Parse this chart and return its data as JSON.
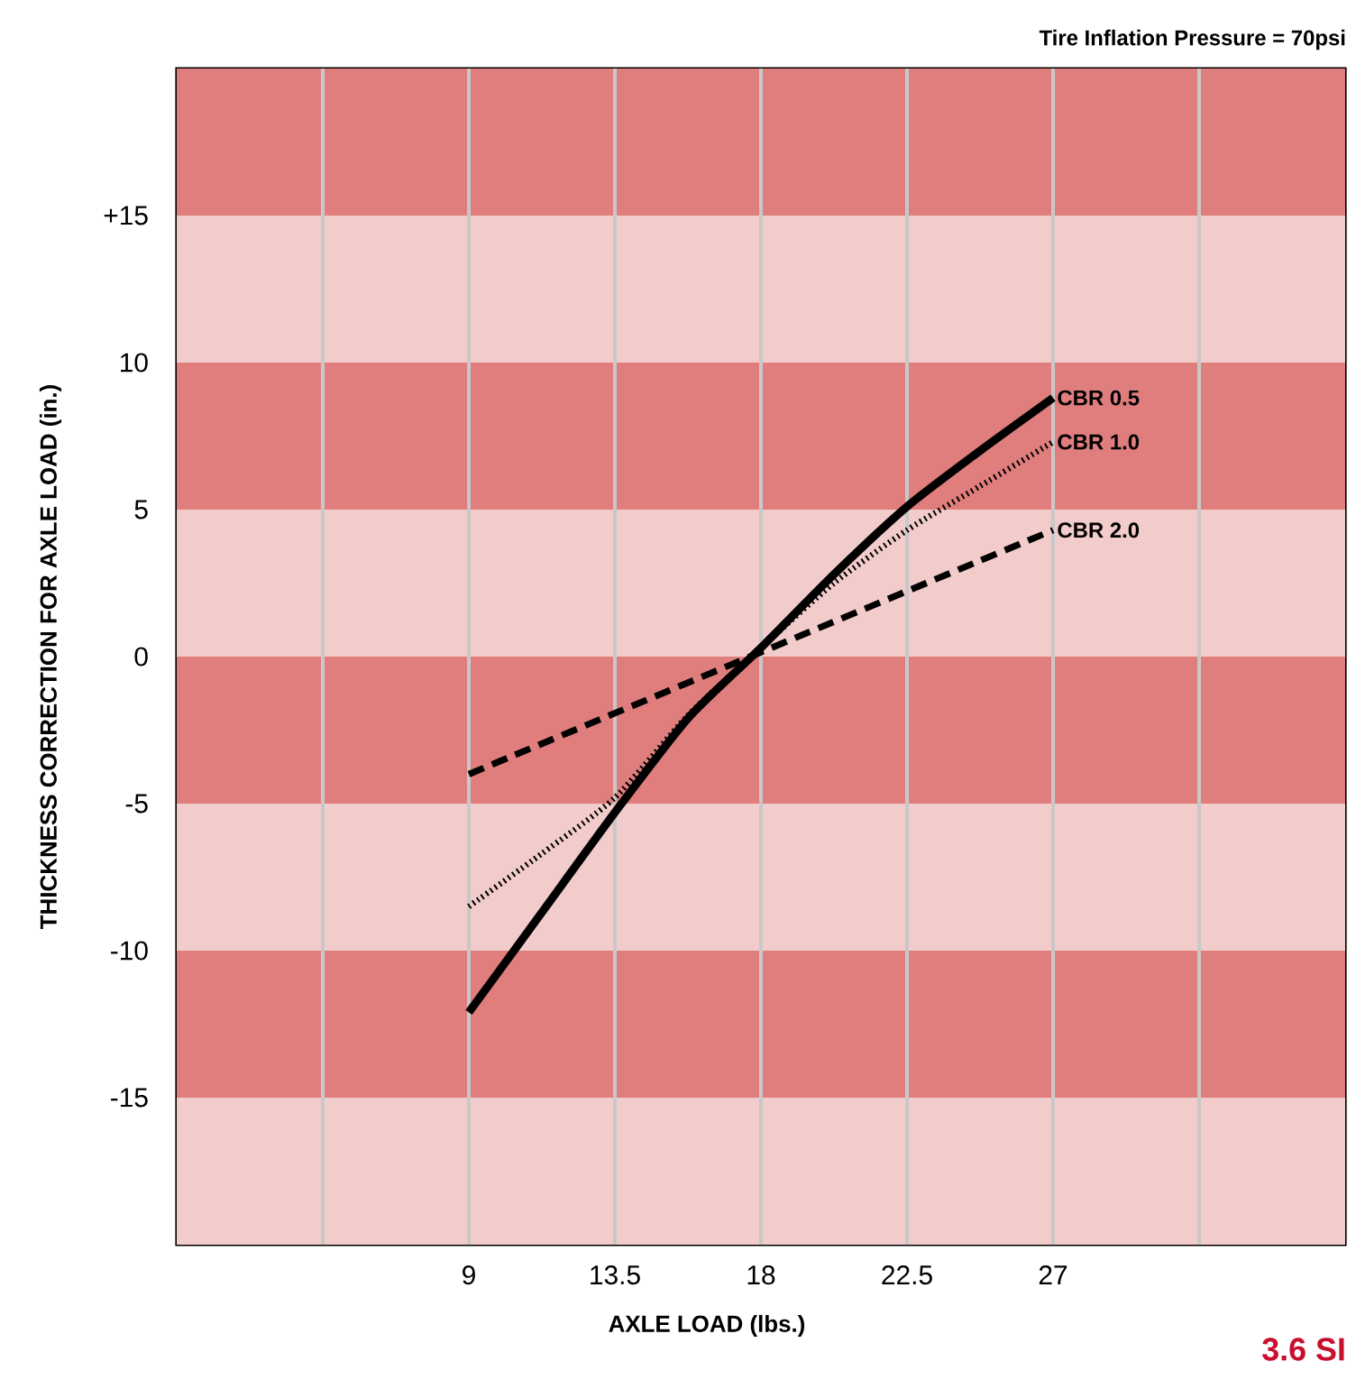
{
  "chart_data": {
    "type": "line",
    "title": "Tire Inflation Pressure = 70psi",
    "xlabel": "AXLE LOAD (lbs.)",
    "ylabel": "THICKNESS CORRECTION FOR AXLE LOAD (in.)",
    "xlim": [
      0,
      36
    ],
    "ylim": [
      -20,
      20
    ],
    "xticks": [
      {
        "value": 4.5,
        "label": null
      },
      9,
      13.5,
      18,
      22.5,
      27,
      {
        "value": 31.5,
        "label": null
      }
    ],
    "yticks": [
      {
        "value": 15,
        "label": "+15"
      },
      10,
      5,
      0,
      -5,
      -10,
      -15
    ],
    "grid": "x",
    "bands": [
      {
        "axis": "y",
        "from": 15,
        "to": 20,
        "color": "#e07d7d"
      },
      {
        "axis": "y",
        "from": 10,
        "to": 15,
        "color": "#f2cccb"
      },
      {
        "axis": "y",
        "from": 5,
        "to": 10,
        "color": "#e07d7d"
      },
      {
        "axis": "y",
        "from": 0,
        "to": 5,
        "color": "#f2cccb"
      },
      {
        "axis": "y",
        "from": -5,
        "to": 0,
        "color": "#e07d7d"
      },
      {
        "axis": "y",
        "from": -10,
        "to": -5,
        "color": "#f2cccb"
      },
      {
        "axis": "y",
        "from": -15,
        "to": -10,
        "color": "#e07d7d"
      },
      {
        "axis": "y",
        "from": -20,
        "to": -15,
        "color": "#f2cccb"
      }
    ],
    "series": [
      {
        "name": "CBR 0.5",
        "color": "#000000",
        "line_style": "solid",
        "x": [
          9,
          11.25,
          13.5,
          15.75,
          18,
          20.25,
          22.5,
          24.75,
          27
        ],
        "values": [
          -12.1,
          -8.7,
          -5.3,
          -2.1,
          0.3,
          2.8,
          5.1,
          7.0,
          8.8
        ]
      },
      {
        "name": "CBR 1.0",
        "color": "#000000",
        "line_style": "dotted",
        "x": [
          9,
          11.25,
          13.5,
          15.75,
          18,
          20.25,
          22.5,
          24.75,
          27
        ],
        "values": [
          -8.5,
          -6.7,
          -4.8,
          -2.0,
          0.3,
          2.5,
          4.3,
          5.8,
          7.3
        ]
      },
      {
        "name": "CBR 2.0",
        "color": "#000000",
        "line_style": "dashed",
        "x": [
          9,
          27
        ],
        "values": [
          -4.0,
          4.3
        ]
      }
    ],
    "annotations": [
      "3.6 SI"
    ]
  }
}
